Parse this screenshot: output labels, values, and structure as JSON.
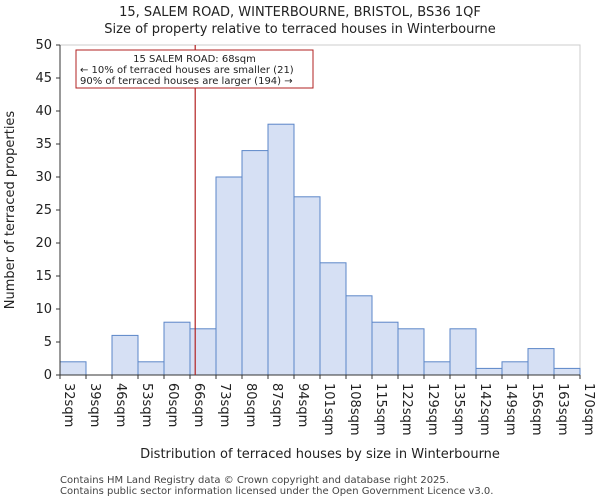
{
  "chart_data": {
    "type": "bar",
    "title_line1": "15, SALEM ROAD, WINTERBOURNE, BRISTOL, BS36 1QF",
    "title_line2": "Size of property relative to terraced houses in Winterbourne",
    "xlabel": "Distribution of terraced houses by size in Winterbourne",
    "ylabel": "Number of terraced properties",
    "x_tick_labels": [
      "32sqm",
      "39sqm",
      "46sqm",
      "53sqm",
      "60sqm",
      "66sqm",
      "73sqm",
      "80sqm",
      "87sqm",
      "94sqm",
      "101sqm",
      "108sqm",
      "115sqm",
      "122sqm",
      "129sqm",
      "135sqm",
      "142sqm",
      "149sqm",
      "156sqm",
      "163sqm",
      "170sqm"
    ],
    "values": [
      2,
      0,
      6,
      2,
      8,
      7,
      30,
      34,
      38,
      27,
      17,
      12,
      8,
      7,
      2,
      7,
      1,
      2,
      4,
      1
    ],
    "ylim": [
      0,
      50
    ],
    "y_ticks": [
      0,
      5,
      10,
      15,
      20,
      25,
      30,
      35,
      40,
      45,
      50
    ],
    "bar_color": "#d6e0f4",
    "bar_edge_color": "#5b86c8",
    "marker": {
      "value_bin_position": 5.2,
      "color": "#b22222",
      "annotation_lines": [
        "15 SALEM ROAD: 68sqm",
        "← 10% of terraced houses are smaller (21)",
        "90% of terraced houses are larger (194) →"
      ]
    }
  },
  "footer": {
    "line1": "Contains HM Land Registry data © Crown copyright and database right 2025.",
    "line2": "Contains public sector information licensed under the Open Government Licence v3.0."
  }
}
